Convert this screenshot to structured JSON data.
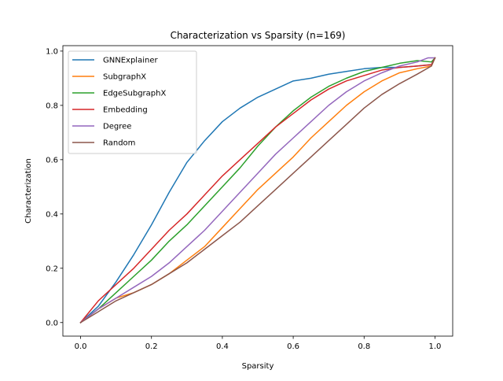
{
  "chart_data": {
    "type": "line",
    "title": "Characterization vs Sparsity (n=169)",
    "xlabel": "Sparsity",
    "ylabel": "Characterization",
    "xlim": [
      -0.05,
      1.05
    ],
    "ylim": [
      -0.05,
      1.02
    ],
    "xticks": [
      "0.0",
      "0.2",
      "0.4",
      "0.6",
      "0.8",
      "1.0"
    ],
    "yticks": [
      "0.0",
      "0.2",
      "0.4",
      "0.6",
      "0.8",
      "1.0"
    ],
    "grid": false,
    "legend_position": "upper-left",
    "series": [
      {
        "name": "GNNExplainer",
        "color": "#1f77b4",
        "x": [
          0,
          0.05,
          0.1,
          0.15,
          0.2,
          0.25,
          0.3,
          0.35,
          0.4,
          0.45,
          0.5,
          0.55,
          0.6,
          0.65,
          0.7,
          0.75,
          0.8,
          0.85,
          0.9,
          0.95,
          0.99,
          1.0
        ],
        "y": [
          0,
          0.06,
          0.15,
          0.25,
          0.36,
          0.48,
          0.59,
          0.67,
          0.74,
          0.79,
          0.83,
          0.86,
          0.89,
          0.9,
          0.915,
          0.925,
          0.935,
          0.94,
          0.94,
          0.945,
          0.95,
          0.975
        ]
      },
      {
        "name": "SubgraphX",
        "color": "#ff7f0e",
        "x": [
          0,
          0.05,
          0.1,
          0.15,
          0.2,
          0.25,
          0.3,
          0.35,
          0.4,
          0.45,
          0.5,
          0.55,
          0.6,
          0.65,
          0.7,
          0.75,
          0.8,
          0.85,
          0.9,
          0.95,
          0.99,
          1.0
        ],
        "y": [
          0,
          0.05,
          0.09,
          0.11,
          0.14,
          0.18,
          0.23,
          0.28,
          0.35,
          0.42,
          0.49,
          0.55,
          0.61,
          0.68,
          0.74,
          0.8,
          0.85,
          0.89,
          0.92,
          0.935,
          0.945,
          0.975
        ]
      },
      {
        "name": "EdgeSubgraphX",
        "color": "#2ca02c",
        "x": [
          0,
          0.05,
          0.1,
          0.15,
          0.2,
          0.25,
          0.3,
          0.35,
          0.4,
          0.45,
          0.5,
          0.55,
          0.6,
          0.65,
          0.7,
          0.75,
          0.8,
          0.85,
          0.9,
          0.95,
          0.99,
          1.0
        ],
        "y": [
          0,
          0.05,
          0.11,
          0.17,
          0.23,
          0.3,
          0.36,
          0.43,
          0.5,
          0.57,
          0.65,
          0.72,
          0.78,
          0.83,
          0.87,
          0.9,
          0.925,
          0.94,
          0.955,
          0.965,
          0.96,
          0.975
        ]
      },
      {
        "name": "Embedding",
        "color": "#d62728",
        "x": [
          0,
          0.05,
          0.1,
          0.15,
          0.2,
          0.25,
          0.3,
          0.35,
          0.4,
          0.45,
          0.5,
          0.55,
          0.6,
          0.65,
          0.7,
          0.75,
          0.8,
          0.85,
          0.9,
          0.95,
          0.99,
          1.0
        ],
        "y": [
          0,
          0.08,
          0.14,
          0.2,
          0.27,
          0.34,
          0.4,
          0.47,
          0.54,
          0.6,
          0.66,
          0.72,
          0.77,
          0.82,
          0.86,
          0.89,
          0.91,
          0.93,
          0.94,
          0.945,
          0.95,
          0.975
        ]
      },
      {
        "name": "Degree",
        "color": "#9467bd",
        "x": [
          0,
          0.05,
          0.1,
          0.15,
          0.2,
          0.25,
          0.3,
          0.35,
          0.4,
          0.45,
          0.5,
          0.55,
          0.6,
          0.65,
          0.7,
          0.75,
          0.8,
          0.85,
          0.9,
          0.95,
          0.98,
          1.0
        ],
        "y": [
          0,
          0.05,
          0.09,
          0.13,
          0.17,
          0.22,
          0.28,
          0.34,
          0.41,
          0.48,
          0.55,
          0.62,
          0.68,
          0.74,
          0.8,
          0.85,
          0.89,
          0.92,
          0.945,
          0.96,
          0.975,
          0.975
        ]
      },
      {
        "name": "Random",
        "color": "#8c564b",
        "x": [
          0,
          0.05,
          0.1,
          0.15,
          0.2,
          0.25,
          0.3,
          0.35,
          0.4,
          0.45,
          0.5,
          0.55,
          0.6,
          0.65,
          0.7,
          0.75,
          0.8,
          0.85,
          0.9,
          0.95,
          0.99,
          1.0
        ],
        "y": [
          0,
          0.04,
          0.08,
          0.11,
          0.14,
          0.18,
          0.22,
          0.27,
          0.32,
          0.37,
          0.43,
          0.49,
          0.55,
          0.61,
          0.67,
          0.73,
          0.79,
          0.84,
          0.88,
          0.915,
          0.945,
          0.975
        ]
      }
    ]
  }
}
